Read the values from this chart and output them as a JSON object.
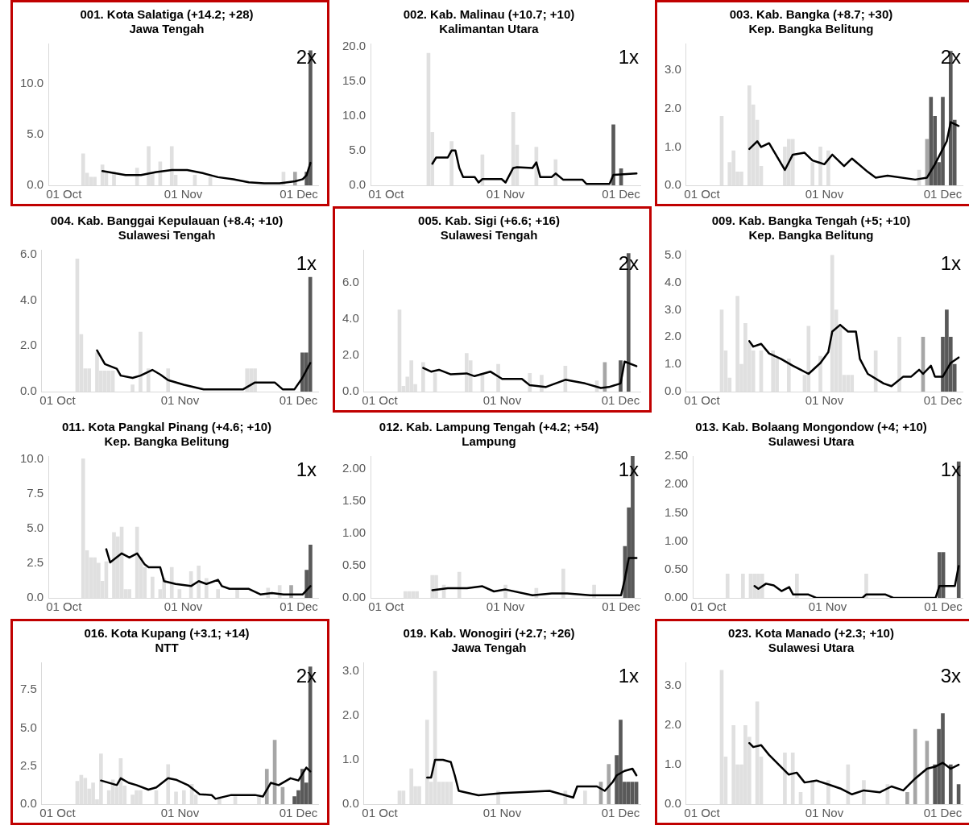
{
  "chart_data": [
    {
      "type": "bar",
      "title": "001. Kota Salatiga (+14.2; +28)",
      "subtitle": "Jawa Tengah",
      "annotations": [
        "2x"
      ],
      "xlim": [
        "--09-27",
        "--12-06"
      ],
      "xticks": [
        {
          "value": "--10-01",
          "label": "01 Oct"
        },
        {
          "value": "--11-01",
          "label": "01 Nov"
        },
        {
          "value": "--12-01",
          "label": "01 Dec"
        }
      ],
      "ylim": [
        0,
        13.9
      ],
      "yticks": [
        {
          "value": 0,
          "label": "0.0"
        },
        {
          "value": 5,
          "label": "5.0"
        },
        {
          "value": 10,
          "label": "10.0"
        }
      ],
      "grid": false,
      "series": [
        {
          "x": [
            "--10-06",
            "--10-07",
            "--10-08",
            "--10-09",
            "--10-11",
            "--10-12",
            "--10-14",
            "--10-20",
            "--10-23",
            "--10-24",
            "--10-26",
            "--10-29",
            "--10-30",
            "--11-04",
            "--11-08",
            "--11-27",
            "--11-30",
            "--12-03",
            "--12-04"
          ],
          "values": [
            3.1,
            1.2,
            0.8,
            0.8,
            2.0,
            1.2,
            1.3,
            1.7,
            3.8,
            1.2,
            2.3,
            3.8,
            1.0,
            1.0,
            0.8,
            1.3,
            1.3,
            1.3,
            13.2
          ],
          "colors": [
            "#e0e0e0",
            "#e0e0e0",
            "#e0e0e0",
            "#e0e0e0",
            "#e0e0e0",
            "#e0e0e0",
            "#e0e0e0",
            "#e0e0e0",
            "#e0e0e0",
            "#e0e0e0",
            "#e0e0e0",
            "#e0e0e0",
            "#e0e0e0",
            "#e0e0e0",
            "#e0e0e0",
            "#e0e0e0",
            "#a6a6a6",
            "#595959",
            "#595959"
          ]
        },
        {
          "type": "line",
          "color": "#000000",
          "x": [
            "--10-11",
            "--10-14",
            "--10-17",
            "--10-21",
            "--10-25",
            "--10-29",
            "--11-02",
            "--11-06",
            "--11-10",
            "--11-14",
            "--11-18",
            "--11-22",
            "--11-26",
            "--11-30",
            "--12-02",
            "--12-03",
            "--12-04"
          ],
          "values": [
            1.4,
            1.2,
            1.0,
            1.0,
            1.3,
            1.5,
            1.5,
            1.2,
            0.8,
            0.6,
            0.3,
            0.2,
            0.2,
            0.4,
            0.6,
            1.0,
            2.2
          ]
        }
      ]
    },
    {
      "type": "bar",
      "title": "002. Kab. Malinau (+10.7; +10)",
      "subtitle": "Kalimantan Utara",
      "annotations": [
        "1x"
      ],
      "xlim": [
        "--09-27",
        "--12-06"
      ],
      "xticks": [
        {
          "value": "--10-01",
          "label": "01 Oct"
        },
        {
          "value": "--11-01",
          "label": "01 Nov"
        },
        {
          "value": "--12-01",
          "label": "01 Dec"
        }
      ],
      "ylim": [
        0,
        20.4
      ],
      "yticks": [
        {
          "value": 0,
          "label": "0.0"
        },
        {
          "value": 5,
          "label": "5.0"
        },
        {
          "value": 10,
          "label": "10.0"
        },
        {
          "value": 15,
          "label": "15.0"
        },
        {
          "value": 20,
          "label": "20.0"
        }
      ],
      "grid": false,
      "series": [
        {
          "x": [
            "--10-12",
            "--10-13",
            "--10-18",
            "--10-26",
            "--11-03",
            "--11-04",
            "--11-09",
            "--11-14",
            "--11-29",
            "--12-01"
          ],
          "values": [
            19.0,
            7.6,
            6.3,
            4.4,
            10.5,
            5.8,
            5.5,
            3.7,
            8.7,
            2.4
          ],
          "colors": [
            "#e0e0e0",
            "#e0e0e0",
            "#e0e0e0",
            "#e0e0e0",
            "#e0e0e0",
            "#e0e0e0",
            "#e0e0e0",
            "#e0e0e0",
            "#595959",
            "#595959"
          ]
        },
        {
          "type": "line",
          "color": "#000000",
          "x": [
            "--10-13",
            "--10-14",
            "--10-17",
            "--10-18",
            "--10-19",
            "--10-20",
            "--10-21",
            "--10-24",
            "--10-25",
            "--10-26",
            "--10-31",
            "--11-01",
            "--11-03",
            "--11-04",
            "--11-08",
            "--11-09",
            "--11-10",
            "--11-13",
            "--11-14",
            "--11-16",
            "--11-21",
            "--11-22",
            "--11-28",
            "--11-29",
            "--12-05"
          ],
          "values": [
            3.1,
            4.0,
            4.0,
            5.0,
            5.0,
            2.5,
            1.2,
            1.2,
            0.4,
            0.9,
            0.9,
            0.4,
            2.5,
            2.6,
            2.5,
            3.3,
            1.2,
            1.2,
            1.7,
            0.8,
            0.8,
            0.2,
            0.2,
            1.5,
            1.7
          ]
        }
      ]
    },
    {
      "type": "bar",
      "title": "003. Kab. Bangka (+8.7; +30)",
      "subtitle": "Kep. Bangka Belitung",
      "annotations": [
        "2x"
      ],
      "xlim": [
        "--09-27",
        "--12-06"
      ],
      "xticks": [
        {
          "value": "--10-01",
          "label": "01 Oct"
        },
        {
          "value": "--11-01",
          "label": "01 Nov"
        },
        {
          "value": "--12-01",
          "label": "01 Dec"
        }
      ],
      "ylim": [
        0,
        3.7
      ],
      "yticks": [
        {
          "value": 0,
          "label": "0.0"
        },
        {
          "value": 1,
          "label": "1.0"
        },
        {
          "value": 2,
          "label": "2.0"
        },
        {
          "value": 3,
          "label": "3.0"
        }
      ],
      "grid": false,
      "series": [
        {
          "x": [
            "--10-06",
            "--10-08",
            "--10-09",
            "--10-10",
            "--10-11",
            "--10-13",
            "--10-14",
            "--10-15",
            "--10-16",
            "--10-22",
            "--10-23",
            "--10-24",
            "--10-29",
            "--10-31",
            "--11-02",
            "--11-25",
            "--11-27",
            "--11-28",
            "--11-29",
            "--11-30",
            "--12-01",
            "--12-03",
            "--12-04"
          ],
          "values": [
            1.8,
            0.6,
            0.9,
            0.35,
            0.35,
            2.6,
            2.1,
            1.7,
            0.5,
            1.0,
            1.2,
            1.2,
            0.6,
            1.0,
            0.9,
            0.4,
            1.2,
            2.3,
            1.8,
            0.6,
            2.3,
            3.5,
            1.7
          ],
          "colors": [
            "#e0e0e0",
            "#e0e0e0",
            "#e0e0e0",
            "#e0e0e0",
            "#e0e0e0",
            "#e0e0e0",
            "#e0e0e0",
            "#e0e0e0",
            "#e0e0e0",
            "#e0e0e0",
            "#e0e0e0",
            "#e0e0e0",
            "#e0e0e0",
            "#e0e0e0",
            "#e0e0e0",
            "#e0e0e0",
            "#a6a6a6",
            "#595959",
            "#595959",
            "#595959",
            "#595959",
            "#595959",
            "#595959"
          ]
        },
        {
          "type": "line",
          "color": "#000000",
          "x": [
            "--10-13",
            "--10-15",
            "--10-16",
            "--10-18",
            "--10-22",
            "--10-24",
            "--10-27",
            "--10-29",
            "--11-01",
            "--11-03",
            "--11-06",
            "--11-08",
            "--11-12",
            "--11-14",
            "--11-17",
            "--11-24",
            "--11-27",
            "--11-29",
            "--12-01",
            "--12-02",
            "--12-03",
            "--12-05"
          ],
          "values": [
            0.95,
            1.15,
            1.0,
            1.1,
            0.4,
            0.8,
            0.85,
            0.65,
            0.55,
            0.8,
            0.5,
            0.7,
            0.35,
            0.2,
            0.25,
            0.15,
            0.2,
            0.55,
            0.95,
            1.15,
            1.65,
            1.55
          ]
        }
      ]
    },
    {
      "type": "bar",
      "title": "004. Kab. Banggai Kepulauan (+8.4; +10)",
      "subtitle": "Sulawesi Tengah",
      "annotations": [
        "1x"
      ],
      "xlim": [
        "--09-27",
        "--12-06"
      ],
      "xticks": [
        {
          "value": "--10-01",
          "label": "01 Oct"
        },
        {
          "value": "--11-01",
          "label": "01 Nov"
        },
        {
          "value": "--12-01",
          "label": "01 Dec"
        }
      ],
      "ylim": [
        0,
        6.2
      ],
      "yticks": [
        {
          "value": 0,
          "label": "0.0"
        },
        {
          "value": 2,
          "label": "2.0"
        },
        {
          "value": 4,
          "label": "4.0"
        },
        {
          "value": 6,
          "label": "6.0"
        }
      ],
      "grid": false,
      "series": [
        {
          "x": [
            "--10-06",
            "--10-07",
            "--10-08",
            "--10-09",
            "--10-11",
            "--10-12",
            "--10-13",
            "--10-14",
            "--10-15",
            "--10-20",
            "--10-22",
            "--10-24",
            "--10-29",
            "--11-18",
            "--11-19",
            "--11-20",
            "--12-02",
            "--12-03",
            "--12-04"
          ],
          "values": [
            5.8,
            2.5,
            1.0,
            1.0,
            1.7,
            0.9,
            0.9,
            0.9,
            0.9,
            0.3,
            2.6,
            1.0,
            1.0,
            1.0,
            1.0,
            1.0,
            1.7,
            1.7,
            5.0
          ],
          "colors": [
            "#e0e0e0",
            "#e0e0e0",
            "#e0e0e0",
            "#e0e0e0",
            "#e0e0e0",
            "#e0e0e0",
            "#e0e0e0",
            "#e0e0e0",
            "#e0e0e0",
            "#e0e0e0",
            "#e0e0e0",
            "#e0e0e0",
            "#e0e0e0",
            "#e0e0e0",
            "#e0e0e0",
            "#e0e0e0",
            "#595959",
            "#595959",
            "#595959"
          ]
        },
        {
          "type": "line",
          "color": "#000000",
          "x": [
            "--10-11",
            "--10-13",
            "--10-16",
            "--10-17",
            "--10-20",
            "--10-22",
            "--10-25",
            "--10-27",
            "--10-29",
            "--11-02",
            "--11-07",
            "--11-17",
            "--11-20",
            "--11-25",
            "--11-27",
            "--11-30",
            "--12-02",
            "--12-04"
          ],
          "values": [
            1.8,
            1.2,
            1.0,
            0.7,
            0.6,
            0.7,
            0.95,
            0.75,
            0.5,
            0.3,
            0.1,
            0.1,
            0.4,
            0.4,
            0.1,
            0.1,
            0.6,
            1.25
          ]
        }
      ]
    },
    {
      "type": "bar",
      "title": "005. Kab. Sigi (+6.6; +16)",
      "subtitle": "Sulawesi Tengah",
      "annotations": [
        "2x"
      ],
      "xlim": [
        "--09-27",
        "--12-06"
      ],
      "xticks": [
        {
          "value": "--10-01",
          "label": "01 Oct"
        },
        {
          "value": "--11-01",
          "label": "01 Nov"
        },
        {
          "value": "--12-01",
          "label": "01 Dec"
        }
      ],
      "ylim": [
        0,
        7.8
      ],
      "yticks": [
        {
          "value": 0,
          "label": "0.0"
        },
        {
          "value": 2,
          "label": "2.0"
        },
        {
          "value": 4,
          "label": "4.0"
        },
        {
          "value": 6,
          "label": "6.0"
        }
      ],
      "grid": false,
      "series": [
        {
          "x": [
            "--10-06",
            "--10-07",
            "--10-08",
            "--10-09",
            "--10-10",
            "--10-12",
            "--10-15",
            "--10-23",
            "--10-24",
            "--10-27",
            "--10-31",
            "--11-08",
            "--11-11",
            "--11-17",
            "--11-25",
            "--11-27",
            "--12-01",
            "--12-03"
          ],
          "values": [
            4.5,
            0.3,
            0.8,
            1.7,
            0.4,
            1.6,
            1.0,
            2.1,
            1.7,
            1.0,
            1.5,
            1.0,
            0.9,
            1.4,
            0.6,
            1.6,
            1.7,
            7.6
          ],
          "colors": [
            "#e0e0e0",
            "#e0e0e0",
            "#e0e0e0",
            "#e0e0e0",
            "#e0e0e0",
            "#e0e0e0",
            "#e0e0e0",
            "#e0e0e0",
            "#e0e0e0",
            "#e0e0e0",
            "#e0e0e0",
            "#e0e0e0",
            "#e0e0e0",
            "#e0e0e0",
            "#e0e0e0",
            "#a6a6a6",
            "#595959",
            "#595959"
          ]
        },
        {
          "type": "line",
          "color": "#000000",
          "x": [
            "--10-12",
            "--10-14",
            "--10-16",
            "--10-19",
            "--10-23",
            "--10-25",
            "--10-29",
            "--11-01",
            "--11-06",
            "--11-08",
            "--11-12",
            "--11-17",
            "--11-22",
            "--11-26",
            "--11-28",
            "--12-01",
            "--12-02",
            "--12-05"
          ],
          "values": [
            1.3,
            1.1,
            1.2,
            0.95,
            1.0,
            0.85,
            1.1,
            0.7,
            0.7,
            0.35,
            0.25,
            0.65,
            0.45,
            0.2,
            0.25,
            0.45,
            1.65,
            1.4
          ]
        }
      ]
    },
    {
      "type": "bar",
      "title": "009. Kab. Bangka Tengah (+5; +10)",
      "subtitle": "Kep. Bangka Belitung",
      "annotations": [
        "1x"
      ],
      "xlim": [
        "--09-27",
        "--12-06"
      ],
      "xticks": [
        {
          "value": "--10-01",
          "label": "01 Oct"
        },
        {
          "value": "--11-01",
          "label": "01 Nov"
        },
        {
          "value": "--12-01",
          "label": "01 Dec"
        }
      ],
      "ylim": [
        0,
        5.2
      ],
      "yticks": [
        {
          "value": 0,
          "label": "0.0"
        },
        {
          "value": 1,
          "label": "1.0"
        },
        {
          "value": 2,
          "label": "2.0"
        },
        {
          "value": 3,
          "label": "3.0"
        },
        {
          "value": 4,
          "label": "4.0"
        },
        {
          "value": 5,
          "label": "5.0"
        }
      ],
      "grid": false,
      "series": [
        {
          "x": [
            "--10-06",
            "--10-07",
            "--10-08",
            "--10-10",
            "--10-11",
            "--10-12",
            "--10-13",
            "--10-14",
            "--10-16",
            "--10-19",
            "--10-20",
            "--10-23",
            "--10-27",
            "--10-28",
            "--10-31",
            "--11-03",
            "--11-04",
            "--11-05",
            "--11-06",
            "--11-07",
            "--11-08",
            "--11-14",
            "--11-20",
            "--11-26",
            "--12-01",
            "--12-02",
            "--12-03",
            "--12-04"
          ],
          "values": [
            3.0,
            1.5,
            0.5,
            3.5,
            1.0,
            2.5,
            1.8,
            1.5,
            1.5,
            1.5,
            1.2,
            1.2,
            0.6,
            2.4,
            1.3,
            5.0,
            3.0,
            2.4,
            0.6,
            0.6,
            0.6,
            1.5,
            2.0,
            2.0,
            2.0,
            3.0,
            2.0,
            1.0
          ],
          "colors": [
            "#e0e0e0",
            "#e0e0e0",
            "#e0e0e0",
            "#e0e0e0",
            "#e0e0e0",
            "#e0e0e0",
            "#e0e0e0",
            "#e0e0e0",
            "#e0e0e0",
            "#e0e0e0",
            "#e0e0e0",
            "#e0e0e0",
            "#e0e0e0",
            "#e0e0e0",
            "#e0e0e0",
            "#e0e0e0",
            "#e0e0e0",
            "#e0e0e0",
            "#e0e0e0",
            "#e0e0e0",
            "#e0e0e0",
            "#e0e0e0",
            "#e0e0e0",
            "#a6a6a6",
            "#595959",
            "#595959",
            "#595959",
            "#595959"
          ]
        },
        {
          "type": "line",
          "color": "#000000",
          "x": [
            "--10-13",
            "--10-14",
            "--10-16",
            "--10-18",
            "--10-21",
            "--10-24",
            "--10-26",
            "--10-28",
            "--10-31",
            "--11-02",
            "--11-03",
            "--11-05",
            "--11-07",
            "--11-09",
            "--11-10",
            "--11-12",
            "--11-16",
            "--11-18",
            "--11-21",
            "--11-23",
            "--11-25",
            "--11-26",
            "--11-28",
            "--11-29",
            "--12-01",
            "--12-03",
            "--12-05"
          ],
          "values": [
            1.85,
            1.65,
            1.75,
            1.4,
            1.2,
            0.95,
            0.8,
            0.65,
            1.05,
            1.45,
            2.2,
            2.45,
            2.2,
            2.2,
            1.2,
            0.65,
            0.3,
            0.2,
            0.55,
            0.55,
            0.8,
            0.65,
            0.95,
            0.55,
            0.55,
            1.05,
            1.25
          ]
        }
      ]
    },
    {
      "type": "bar",
      "title": "011. Kota Pangkal Pinang (+4.6; +10)",
      "subtitle": "Kep. Bangka Belitung",
      "annotations": [
        "1x"
      ],
      "xlim": [
        "--09-27",
        "--12-06"
      ],
      "xticks": [
        {
          "value": "--10-01",
          "label": "01 Oct"
        },
        {
          "value": "--11-01",
          "label": "01 Nov"
        },
        {
          "value": "--12-01",
          "label": "01 Dec"
        }
      ],
      "ylim": [
        0,
        10.2
      ],
      "yticks": [
        {
          "value": 0,
          "label": "0.0"
        },
        {
          "value": 2.5,
          "label": "2.5"
        },
        {
          "value": 5,
          "label": "5.0"
        },
        {
          "value": 7.5,
          "label": "7.5"
        },
        {
          "value": 10,
          "label": "10.0"
        }
      ],
      "grid": false,
      "series": [
        {
          "x": [
            "--10-06",
            "--10-07",
            "--10-08",
            "--10-09",
            "--10-10",
            "--10-11",
            "--10-12",
            "--10-14",
            "--10-15",
            "--10-16",
            "--10-17",
            "--10-18",
            "--10-20",
            "--10-21",
            "--10-22",
            "--10-24",
            "--10-26",
            "--10-27",
            "--10-29",
            "--10-31",
            "--11-03",
            "--11-05",
            "--11-07",
            "--11-10",
            "--11-15",
            "--11-23",
            "--11-26",
            "--11-29",
            "--12-03",
            "--12-04"
          ],
          "values": [
            10.0,
            3.4,
            2.9,
            2.9,
            2.5,
            1.2,
            2.6,
            4.7,
            4.4,
            5.1,
            0.6,
            0.6,
            5.1,
            2.9,
            2.2,
            1.5,
            0.6,
            1.4,
            2.2,
            0.6,
            1.9,
            2.3,
            1.4,
            0.6,
            0.6,
            0.7,
            0.9,
            0.9,
            2.0,
            3.8
          ],
          "colors": [
            "#e0e0e0",
            "#e0e0e0",
            "#e0e0e0",
            "#e0e0e0",
            "#e0e0e0",
            "#e0e0e0",
            "#e0e0e0",
            "#e0e0e0",
            "#e0e0e0",
            "#e0e0e0",
            "#e0e0e0",
            "#e0e0e0",
            "#e0e0e0",
            "#e0e0e0",
            "#e0e0e0",
            "#e0e0e0",
            "#e0e0e0",
            "#e0e0e0",
            "#e0e0e0",
            "#e0e0e0",
            "#e0e0e0",
            "#e0e0e0",
            "#e0e0e0",
            "#e0e0e0",
            "#e0e0e0",
            "#e0e0e0",
            "#e0e0e0",
            "#a6a6a6",
            "#595959",
            "#595959"
          ]
        },
        {
          "type": "line",
          "color": "#000000",
          "x": [
            "--10-12",
            "--10-13",
            "--10-16",
            "--10-18",
            "--10-20",
            "--10-22",
            "--10-23",
            "--10-26",
            "--10-27",
            "--10-30",
            "--11-03",
            "--11-05",
            "--11-07",
            "--11-10",
            "--11-11",
            "--11-13",
            "--11-18",
            "--11-21",
            "--11-24",
            "--11-27",
            "--12-02",
            "--12-04"
          ],
          "values": [
            3.5,
            2.55,
            3.2,
            2.9,
            3.2,
            2.4,
            2.2,
            2.2,
            1.2,
            1.0,
            0.85,
            1.2,
            1.0,
            1.3,
            0.85,
            0.65,
            0.65,
            0.25,
            0.35,
            0.25,
            0.25,
            0.85
          ]
        }
      ]
    },
    {
      "type": "bar",
      "title": "012. Kab. Lampung Tengah (+4.2; +54)",
      "subtitle": "Lampung",
      "annotations": [
        "1x"
      ],
      "xlim": [
        "--09-27",
        "--12-06"
      ],
      "xticks": [
        {
          "value": "--10-01",
          "label": "01 Oct"
        },
        {
          "value": "--11-01",
          "label": "01 Nov"
        },
        {
          "value": "--12-01",
          "label": "01 Dec"
        }
      ],
      "ylim": [
        0,
        2.2
      ],
      "yticks": [
        {
          "value": 0,
          "label": "0.00"
        },
        {
          "value": 0.5,
          "label": "0.50"
        },
        {
          "value": 1,
          "label": "1.00"
        },
        {
          "value": 1.5,
          "label": "1.50"
        },
        {
          "value": 2,
          "label": "2.00"
        }
      ],
      "grid": false,
      "series": [
        {
          "x": [
            "--10-06",
            "--10-07",
            "--10-08",
            "--10-09",
            "--10-13",
            "--10-14",
            "--10-16",
            "--10-20",
            "--11-01",
            "--11-09",
            "--11-16",
            "--11-24",
            "--12-02",
            "--12-03",
            "--12-04"
          ],
          "values": [
            0.1,
            0.1,
            0.1,
            0.1,
            0.35,
            0.35,
            0.2,
            0.4,
            0.2,
            0.15,
            0.45,
            0.2,
            0.8,
            1.4,
            2.2
          ],
          "colors": [
            "#e0e0e0",
            "#e0e0e0",
            "#e0e0e0",
            "#e0e0e0",
            "#e0e0e0",
            "#e0e0e0",
            "#e0e0e0",
            "#e0e0e0",
            "#e0e0e0",
            "#e0e0e0",
            "#e0e0e0",
            "#e0e0e0",
            "#595959",
            "#595959",
            "#595959"
          ]
        },
        {
          "type": "line",
          "color": "#000000",
          "x": [
            "--10-13",
            "--10-17",
            "--10-22",
            "--10-26",
            "--10-29",
            "--11-01",
            "--11-08",
            "--11-13",
            "--11-17",
            "--11-23",
            "--12-01",
            "--12-02",
            "--12-03",
            "--12-05"
          ],
          "values": [
            0.12,
            0.15,
            0.15,
            0.18,
            0.1,
            0.13,
            0.04,
            0.07,
            0.07,
            0.04,
            0.04,
            0.3,
            0.62,
            0.62
          ]
        }
      ]
    },
    {
      "type": "bar",
      "title": "013. Kab. Bolaang Mongondow (+4; +10)",
      "subtitle": "Sulawesi Utara",
      "annotations": [
        "1x"
      ],
      "xlim": [
        "--09-27",
        "--12-06"
      ],
      "xticks": [
        {
          "value": "--10-01",
          "label": "01 Oct"
        },
        {
          "value": "--11-01",
          "label": "01 Nov"
        },
        {
          "value": "--12-01",
          "label": "01 Dec"
        }
      ],
      "ylim": [
        0,
        2.5
      ],
      "yticks": [
        {
          "value": 0,
          "label": "0.00"
        },
        {
          "value": 0.5,
          "label": "0.50"
        },
        {
          "value": 1,
          "label": "1.00"
        },
        {
          "value": 1.5,
          "label": "1.50"
        },
        {
          "value": 2,
          "label": "2.00"
        },
        {
          "value": 2.5,
          "label": "2.50"
        }
      ],
      "grid": false,
      "series": [
        {
          "x": [
            "--10-06",
            "--10-10",
            "--10-12",
            "--10-13",
            "--10-14",
            "--10-15",
            "--10-24",
            "--11-11",
            "--11-30",
            "--12-01",
            "--12-05"
          ],
          "values": [
            0.42,
            0.42,
            0.42,
            0.42,
            0.42,
            0.42,
            0.42,
            0.42,
            0.8,
            0.8,
            2.4
          ],
          "colors": [
            "#e0e0e0",
            "#e0e0e0",
            "#e0e0e0",
            "#e0e0e0",
            "#e0e0e0",
            "#e0e0e0",
            "#e0e0e0",
            "#e0e0e0",
            "#595959",
            "#595959",
            "#595959"
          ]
        },
        {
          "type": "line",
          "color": "#000000",
          "x": [
            "--10-13",
            "--10-14",
            "--10-16",
            "--10-18",
            "--10-20",
            "--10-22",
            "--10-23",
            "--10-27",
            "--10-29",
            "--11-10",
            "--11-11",
            "--11-16",
            "--11-18",
            "--11-29",
            "--11-30",
            "--12-04",
            "--12-05"
          ],
          "values": [
            0.21,
            0.16,
            0.25,
            0.22,
            0.12,
            0.19,
            0.06,
            0.06,
            0,
            0,
            0.06,
            0.06,
            0,
            0,
            0.21,
            0.21,
            0.56
          ]
        }
      ]
    },
    {
      "type": "bar",
      "title": "016. Kota Kupang (+3.1; +14)",
      "subtitle": "NTT",
      "annotations": [
        "2x"
      ],
      "xlim": [
        "--09-27",
        "--12-06"
      ],
      "xticks": [
        {
          "value": "--10-01",
          "label": "01 Oct"
        },
        {
          "value": "--11-01",
          "label": "01 Nov"
        },
        {
          "value": "--12-01",
          "label": "01 Dec"
        }
      ],
      "ylim": [
        0,
        9.3
      ],
      "yticks": [
        {
          "value": 0,
          "label": "0.0"
        },
        {
          "value": 2.5,
          "label": "2.5"
        },
        {
          "value": 5,
          "label": "5.0"
        },
        {
          "value": 7.5,
          "label": "7.5"
        }
      ],
      "grid": false,
      "series": [
        {
          "x": [
            "--10-06",
            "--10-07",
            "--10-08",
            "--10-09",
            "--10-10",
            "--10-11",
            "--10-12",
            "--10-14",
            "--10-15",
            "--10-16",
            "--10-17",
            "--10-18",
            "--10-20",
            "--10-21",
            "--10-22",
            "--10-26",
            "--10-29",
            "--10-31",
            "--11-02",
            "--11-04",
            "--11-05",
            "--11-11",
            "--11-15",
            "--11-21",
            "--11-23",
            "--11-25",
            "--11-27",
            "--11-30",
            "--12-01",
            "--12-02",
            "--12-03",
            "--12-04"
          ],
          "values": [
            1.5,
            1.9,
            1.7,
            1.0,
            1.4,
            0.3,
            3.3,
            0.9,
            1.6,
            1.1,
            3.0,
            1.2,
            0.6,
            0.9,
            0.9,
            0.9,
            2.6,
            0.8,
            0.9,
            1.3,
            0.6,
            0.5,
            0.5,
            0.5,
            2.3,
            4.2,
            1.1,
            0.5,
            0.9,
            2.3,
            1.4,
            9.0
          ],
          "colors": [
            "#e0e0e0",
            "#e0e0e0",
            "#e0e0e0",
            "#e0e0e0",
            "#e0e0e0",
            "#e0e0e0",
            "#e0e0e0",
            "#e0e0e0",
            "#e0e0e0",
            "#e0e0e0",
            "#e0e0e0",
            "#e0e0e0",
            "#e0e0e0",
            "#e0e0e0",
            "#e0e0e0",
            "#e0e0e0",
            "#e0e0e0",
            "#e0e0e0",
            "#e0e0e0",
            "#e0e0e0",
            "#e0e0e0",
            "#e0e0e0",
            "#e0e0e0",
            "#e0e0e0",
            "#a6a6a6",
            "#a6a6a6",
            "#a6a6a6",
            "#595959",
            "#595959",
            "#595959",
            "#595959",
            "#595959"
          ]
        },
        {
          "type": "line",
          "color": "#000000",
          "x": [
            "--10-12",
            "--10-16",
            "--10-17",
            "--10-19",
            "--10-21",
            "--10-24",
            "--10-26",
            "--10-29",
            "--10-31",
            "--11-03",
            "--11-06",
            "--11-09",
            "--11-10",
            "--11-14",
            "--11-20",
            "--11-22",
            "--11-24",
            "--11-26",
            "--11-29",
            "--12-01",
            "--12-03",
            "--12-04"
          ],
          "values": [
            1.55,
            1.25,
            1.7,
            1.4,
            1.25,
            0.95,
            1.1,
            1.7,
            1.6,
            1.25,
            0.65,
            0.6,
            0.35,
            0.6,
            0.6,
            0.5,
            1.4,
            1.25,
            1.7,
            1.55,
            2.4,
            2.15
          ]
        }
      ]
    },
    {
      "type": "bar",
      "title": "019. Kab. Wonogiri (+2.7; +26)",
      "subtitle": "Jawa Tengah",
      "annotations": [
        "1x"
      ],
      "xlim": [
        "--09-27",
        "--12-06"
      ],
      "xticks": [
        {
          "value": "--10-01",
          "label": "01 Oct"
        },
        {
          "value": "--11-01",
          "label": "01 Nov"
        },
        {
          "value": "--12-01",
          "label": "01 Dec"
        }
      ],
      "ylim": [
        0,
        3.2
      ],
      "yticks": [
        {
          "value": 0,
          "label": "0.0"
        },
        {
          "value": 1,
          "label": "1.0"
        },
        {
          "value": 2,
          "label": "2.0"
        },
        {
          "value": 3,
          "label": "3.0"
        }
      ],
      "grid": false,
      "series": [
        {
          "x": [
            "--10-06",
            "--10-07",
            "--10-09",
            "--10-10",
            "--10-11",
            "--10-13",
            "--10-14",
            "--10-15",
            "--10-16",
            "--10-17",
            "--10-18",
            "--10-19",
            "--10-31",
            "--11-17",
            "--11-22",
            "--11-26",
            "--11-28",
            "--11-30",
            "--12-01",
            "--12-02",
            "--12-03",
            "--12-04",
            "--12-05"
          ],
          "values": [
            0.3,
            0.3,
            0.8,
            0.4,
            0.4,
            1.9,
            0.5,
            3.0,
            0.5,
            0.5,
            0.5,
            0.5,
            0.3,
            0.3,
            0.3,
            0.5,
            0.9,
            1.1,
            1.9,
            0.5,
            0.5,
            0.5,
            0.5
          ],
          "colors": [
            "#e0e0e0",
            "#e0e0e0",
            "#e0e0e0",
            "#e0e0e0",
            "#e0e0e0",
            "#e0e0e0",
            "#e0e0e0",
            "#e0e0e0",
            "#e0e0e0",
            "#e0e0e0",
            "#e0e0e0",
            "#e0e0e0",
            "#e0e0e0",
            "#e0e0e0",
            "#e0e0e0",
            "#a6a6a6",
            "#a6a6a6",
            "#595959",
            "#595959",
            "#595959",
            "#595959",
            "#595959",
            "#595959"
          ]
        },
        {
          "type": "line",
          "color": "#000000",
          "x": [
            "--10-13",
            "--10-14",
            "--10-15",
            "--10-17",
            "--10-19",
            "--10-20",
            "--10-21",
            "--10-26",
            "--11-01",
            "--11-13",
            "--11-19",
            "--11-20",
            "--11-25",
            "--11-27",
            "--11-29",
            "--11-30",
            "--12-02",
            "--12-04",
            "--12-05"
          ],
          "values": [
            0.6,
            0.6,
            1.0,
            1.0,
            0.95,
            0.65,
            0.3,
            0.2,
            0.25,
            0.3,
            0.15,
            0.4,
            0.4,
            0.3,
            0.5,
            0.65,
            0.75,
            0.8,
            0.65
          ]
        }
      ]
    },
    {
      "type": "bar",
      "title": "023. Kota Manado (+2.3; +10)",
      "subtitle": "Sulawesi Utara",
      "annotations": [
        "3x"
      ],
      "xlim": [
        "--09-27",
        "--12-06"
      ],
      "xticks": [
        {
          "value": "--10-01",
          "label": "01 Oct"
        },
        {
          "value": "--11-01",
          "label": "01 Nov"
        },
        {
          "value": "--12-01",
          "label": "01 Dec"
        }
      ],
      "ylim": [
        0,
        3.6
      ],
      "yticks": [
        {
          "value": 0,
          "label": "0.0"
        },
        {
          "value": 1,
          "label": "1.0"
        },
        {
          "value": 2,
          "label": "2.0"
        },
        {
          "value": 3,
          "label": "3.0"
        }
      ],
      "grid": false,
      "series": [
        {
          "x": [
            "--10-06",
            "--10-07",
            "--10-09",
            "--10-10",
            "--10-11",
            "--10-12",
            "--10-13",
            "--10-15",
            "--10-16",
            "--10-22",
            "--10-24",
            "--10-26",
            "--10-29",
            "--11-02",
            "--11-07",
            "--11-11",
            "--11-17",
            "--11-22",
            "--11-24",
            "--11-27",
            "--11-29",
            "--11-30",
            "--12-01",
            "--12-03",
            "--12-05"
          ],
          "values": [
            3.4,
            1.2,
            2.0,
            1.0,
            1.0,
            2.0,
            1.7,
            2.6,
            1.2,
            1.3,
            1.3,
            0.3,
            0.6,
            0.6,
            1.0,
            0.6,
            0.5,
            0.3,
            1.9,
            1.6,
            1.0,
            1.9,
            2.3,
            1.0,
            0.5
          ],
          "colors": [
            "#e0e0e0",
            "#e0e0e0",
            "#e0e0e0",
            "#e0e0e0",
            "#e0e0e0",
            "#e0e0e0",
            "#e0e0e0",
            "#e0e0e0",
            "#e0e0e0",
            "#e0e0e0",
            "#e0e0e0",
            "#e0e0e0",
            "#e0e0e0",
            "#e0e0e0",
            "#e0e0e0",
            "#e0e0e0",
            "#e0e0e0",
            "#a6a6a6",
            "#a6a6a6",
            "#a6a6a6",
            "#595959",
            "#595959",
            "#595959",
            "#595959",
            "#595959"
          ]
        },
        {
          "type": "line",
          "color": "#000000",
          "x": [
            "--10-13",
            "--10-14",
            "--10-16",
            "--10-18",
            "--10-21",
            "--10-23",
            "--10-25",
            "--10-27",
            "--10-30",
            "--11-02",
            "--11-05",
            "--11-08",
            "--11-11",
            "--11-15",
            "--11-18",
            "--11-21",
            "--11-24",
            "--11-27",
            "--11-29",
            "--12-01",
            "--12-03",
            "--12-05"
          ],
          "values": [
            1.55,
            1.45,
            1.5,
            1.25,
            0.95,
            0.75,
            0.8,
            0.55,
            0.6,
            0.5,
            0.4,
            0.25,
            0.35,
            0.3,
            0.45,
            0.35,
            0.65,
            0.9,
            0.95,
            1.05,
            0.9,
            1.0
          ]
        }
      ]
    }
  ]
}
